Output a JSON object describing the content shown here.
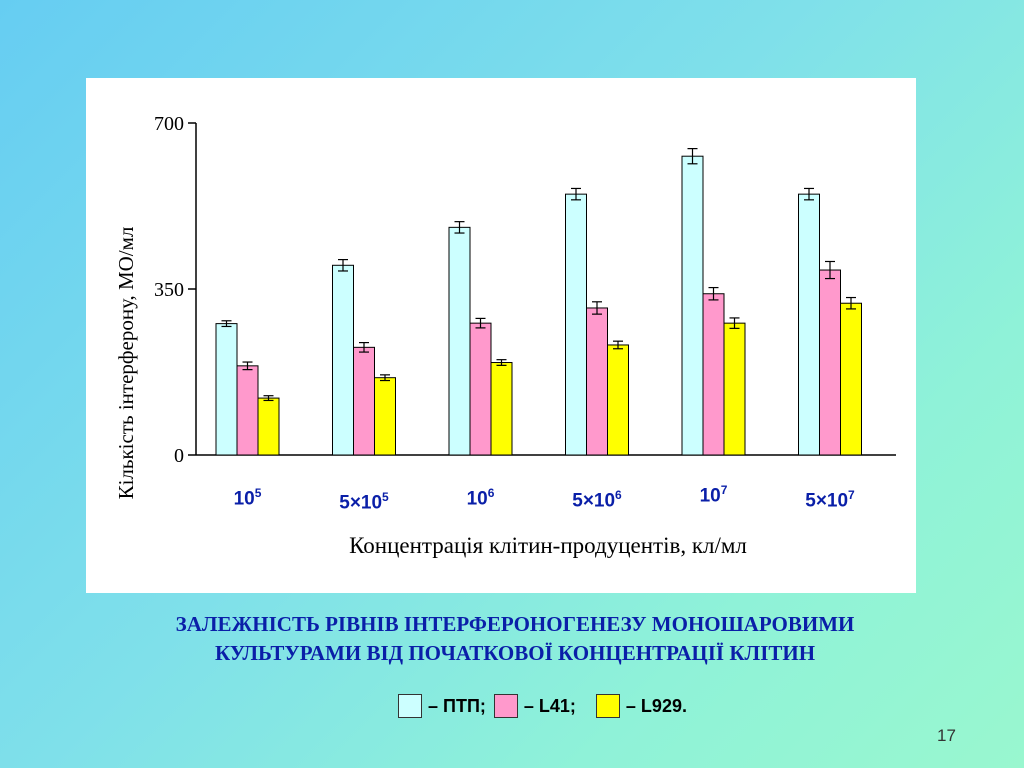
{
  "chart_data": {
    "type": "bar",
    "ylabel": "Кількість інтерферону,  МО/мл",
    "xlabel": "Концентрація клітин-продуцентів, кл/мл",
    "ylim": [
      0,
      700
    ],
    "yticks": [
      "0",
      "350",
      "700"
    ],
    "ytick_values": [
      0,
      350,
      700
    ],
    "categories": [
      {
        "base": "10",
        "exp": "5"
      },
      {
        "base": "5×10",
        "exp": "5"
      },
      {
        "base": "10",
        "exp": "6"
      },
      {
        "base": "5×10",
        "exp": "6"
      },
      {
        "base": "10",
        "exp": "7"
      },
      {
        "base": "5×10",
        "exp": "7"
      }
    ],
    "series": [
      {
        "name": "ПТП",
        "color": "#ccffff",
        "values": [
          277,
          400,
          480,
          550,
          630,
          550
        ],
        "errors": [
          6,
          12,
          12,
          12,
          16,
          12
        ]
      },
      {
        "name": "L41",
        "color": "#ff99cc",
        "values": [
          188,
          227,
          278,
          310,
          340,
          390
        ],
        "errors": [
          8,
          10,
          10,
          13,
          13,
          18
        ]
      },
      {
        "name": "L929",
        "color": "#ffff00",
        "values": [
          120,
          163,
          195,
          232,
          278,
          320
        ],
        "errors": [
          5,
          6,
          6,
          8,
          11,
          12
        ]
      }
    ],
    "grid": false,
    "legend_position": "bottom-center"
  },
  "caption": {
    "line1": "ЗАЛЕЖНІСТЬ РІВНІВ ІНТЕРФЕРОНОГЕНЕЗУ МОНОШАРОВИМИ",
    "line2": "КУЛЬТУРАМИ ВІД ПОЧАТКОВОЇ КОНЦЕНТРАЦІЇ КЛІТИН"
  },
  "legend": {
    "items": [
      {
        "label": "– ПТП;",
        "color": "#ccffff"
      },
      {
        "label": "– L41;",
        "color": "#ff99cc"
      },
      {
        "label": "– L929.",
        "color": "#ffff00"
      }
    ]
  },
  "slide_number": "17"
}
